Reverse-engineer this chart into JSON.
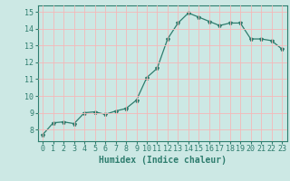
{
  "x": [
    0,
    1,
    2,
    3,
    4,
    5,
    6,
    7,
    8,
    9,
    10,
    11,
    12,
    13,
    14,
    15,
    16,
    17,
    18,
    19,
    20,
    21,
    22,
    23
  ],
  "y": [
    7.7,
    8.4,
    8.45,
    8.35,
    9.0,
    9.05,
    8.9,
    9.1,
    9.25,
    9.75,
    11.1,
    11.65,
    13.4,
    14.35,
    14.95,
    14.7,
    14.45,
    14.2,
    14.35,
    14.35,
    13.4,
    13.4,
    13.3,
    12.8
  ],
  "line_color": "#2e7d6e",
  "marker": "*",
  "marker_size": 3,
  "bg_color": "#cce8e4",
  "grid_color": "#f5b8b8",
  "xlabel": "Humidex (Indice chaleur)",
  "xlabel_fontsize": 7,
  "tick_color": "#2e7d6e",
  "tick_fontsize": 6,
  "xlim": [
    -0.5,
    23.5
  ],
  "ylim": [
    7.3,
    15.4
  ],
  "yticks": [
    8,
    9,
    10,
    11,
    12,
    13,
    14,
    15
  ],
  "xticks": [
    0,
    1,
    2,
    3,
    4,
    5,
    6,
    7,
    8,
    9,
    10,
    11,
    12,
    13,
    14,
    15,
    16,
    17,
    18,
    19,
    20,
    21,
    22,
    23
  ]
}
